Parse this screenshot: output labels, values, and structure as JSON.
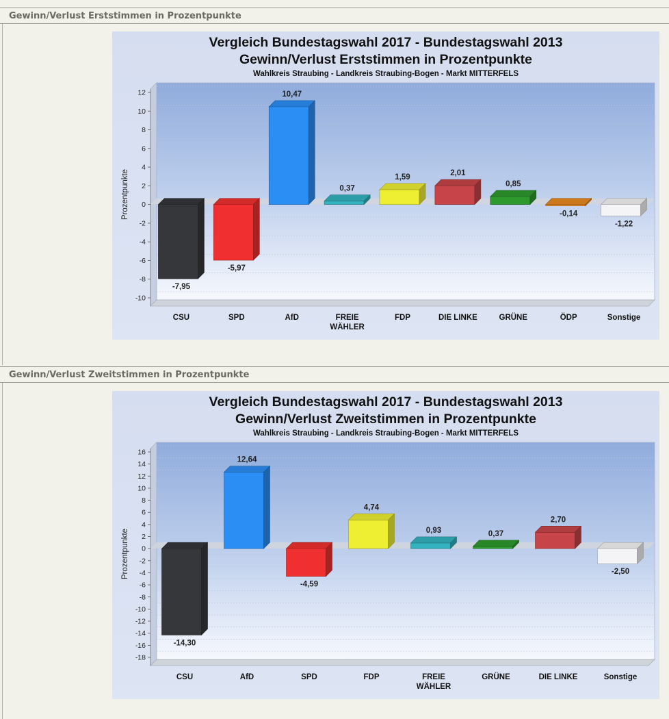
{
  "sections": [
    {
      "header": "Gewinn/Verlust Erststimmen in Prozentpunkte"
    },
    {
      "header": "Gewinn/Verlust Zweitstimmen in Prozentpunkte"
    }
  ],
  "chart_data": [
    {
      "type": "bar",
      "title": "Vergleich Bundestagswahl 2017 - Bundestagswahl 2013",
      "subtitle": "Gewinn/Verlust Erststimmen in Prozentpunkte",
      "subtitle2": "Wahlkreis Straubing - Landkreis Straubing-Bogen - Markt MITTERFELS",
      "xlabel": "",
      "ylabel": "Prozentpunkte",
      "ylim": [
        -10,
        12
      ],
      "yticks": [
        -10,
        -8,
        -6,
        -4,
        -2,
        0,
        2,
        4,
        6,
        8,
        10,
        12
      ],
      "ytick_labels": [
        "-10",
        "-8",
        "-6",
        "-4",
        "-2",
        "0",
        "2",
        "4",
        "6",
        "8",
        "10",
        "12"
      ],
      "grid": true,
      "categories": [
        "CSU",
        "SPD",
        "AfD",
        "FREIE\nWÄHLER",
        "FDP",
        "DIE LINKE",
        "GRÜNE",
        "ÖDP",
        "Sonstige"
      ],
      "values": [
        -7.95,
        -5.97,
        10.47,
        0.37,
        1.59,
        2.01,
        0.85,
        -0.14,
        -1.22
      ],
      "value_labels": [
        "-7,95",
        "-5,97",
        "10,47",
        "0,37",
        "1,59",
        "2,01",
        "0,85",
        "-0,14",
        "-1,22"
      ],
      "colors": [
        "#35373a",
        "#f03030",
        "#2b8ef5",
        "#33b3bf",
        "#eeee33",
        "#c74448",
        "#2e9a2e",
        "#e88a22",
        "#f4f4f6"
      ]
    },
    {
      "type": "bar",
      "title": "Vergleich Bundestagswahl 2017 - Bundestagswahl 2013",
      "subtitle": "Gewinn/Verlust Zweitstimmen in Prozentpunkte",
      "subtitle2": "Wahlkreis Straubing - Landkreis Straubing-Bogen - Markt MITTERFELS",
      "xlabel": "",
      "ylabel": "Prozentpunkte",
      "ylim": [
        -18,
        16
      ],
      "yticks": [
        -18,
        -16,
        -14,
        -12,
        -10,
        -8,
        -6,
        -4,
        -2,
        0,
        2,
        4,
        6,
        8,
        10,
        12,
        14,
        16
      ],
      "ytick_labels": [
        "-18",
        "-16",
        "-14",
        "-12",
        "-10",
        "-8",
        "-6",
        "-4",
        "-2",
        "0",
        "2",
        "4",
        "6",
        "8",
        "10",
        "12",
        "14",
        "16"
      ],
      "grid": true,
      "categories": [
        "CSU",
        "AfD",
        "SPD",
        "FDP",
        "FREIE\nWÄHLER",
        "GRÜNE",
        "DIE LINKE",
        "Sonstige"
      ],
      "values": [
        -14.3,
        12.64,
        -4.59,
        4.74,
        0.93,
        0.37,
        2.7,
        -2.5
      ],
      "value_labels": [
        "-14,30",
        "12,64",
        "-4,59",
        "4,74",
        "0,93",
        "0,37",
        "2,70",
        "-2,50"
      ],
      "colors": [
        "#35373a",
        "#2b8ef5",
        "#f03030",
        "#eeee33",
        "#33b3bf",
        "#2e9a2e",
        "#c74448",
        "#f4f4f6"
      ]
    }
  ]
}
